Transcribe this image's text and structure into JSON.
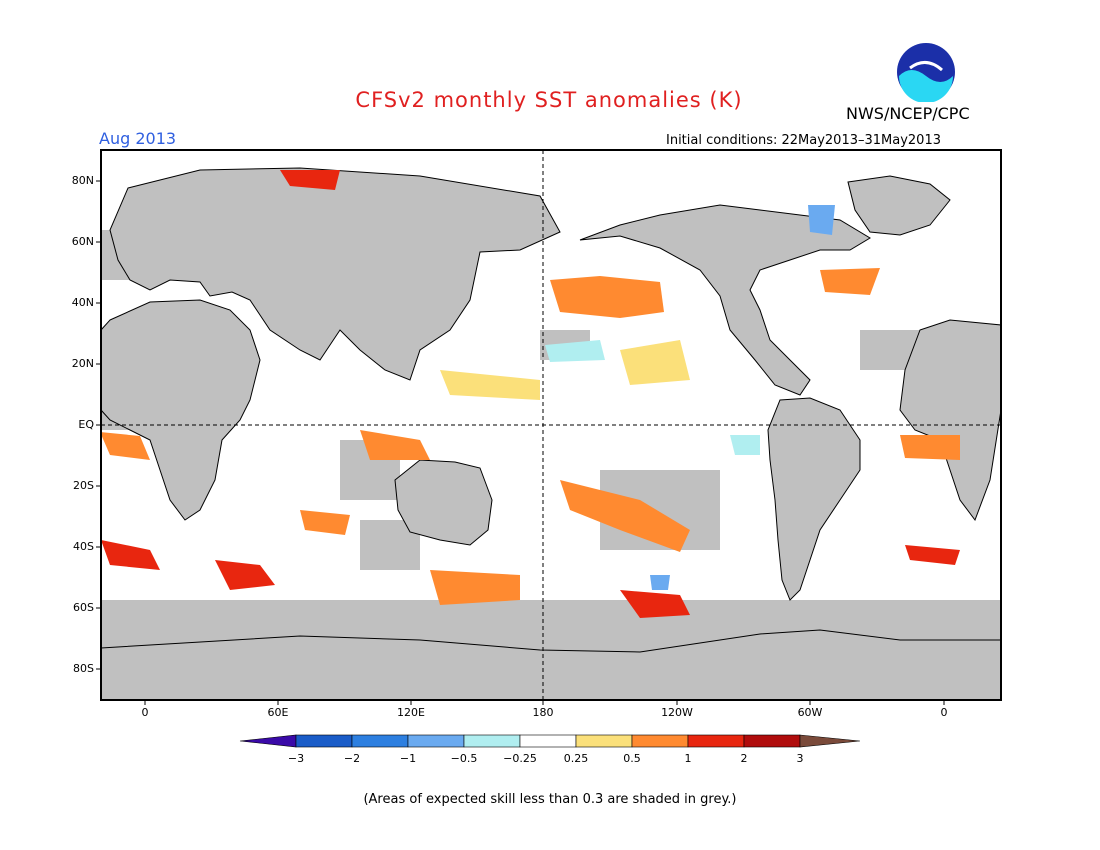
{
  "header": {
    "title": "CFSv2 monthly SST anomalies (K)",
    "organization": "NWS/NCEP/CPC",
    "month": "Aug 2013",
    "initial_conditions": "Initial conditions: 22May2013–31May2013"
  },
  "logo": {
    "icon": "noaa-logo-icon"
  },
  "map": {
    "lat_labels": [
      "80N",
      "60N",
      "40N",
      "20N",
      "EQ",
      "20S",
      "40S",
      "60S",
      "80S"
    ],
    "lon_labels": [
      "0",
      "60E",
      "120E",
      "180",
      "120W",
      "60W",
      "0"
    ],
    "land_color": "#c0c0c0",
    "ocean_color": "#ffffff"
  },
  "colorbar": {
    "labels": [
      "−3",
      "−2",
      "−1",
      "−0.5",
      "−0.25",
      "0.25",
      "0.5",
      "1",
      "2",
      "3"
    ],
    "colors": [
      "#3a0aa8",
      "#1a5cc8",
      "#2d7fe0",
      "#6aaaf0",
      "#b0eef0",
      "#ffffff",
      "#fbe07a",
      "#ff8a30",
      "#e8260f",
      "#b00c0c",
      "#c80000",
      "#7a4a3a"
    ]
  },
  "footnote": "(Areas of expected skill less than 0.3 are shaded in grey.)"
}
